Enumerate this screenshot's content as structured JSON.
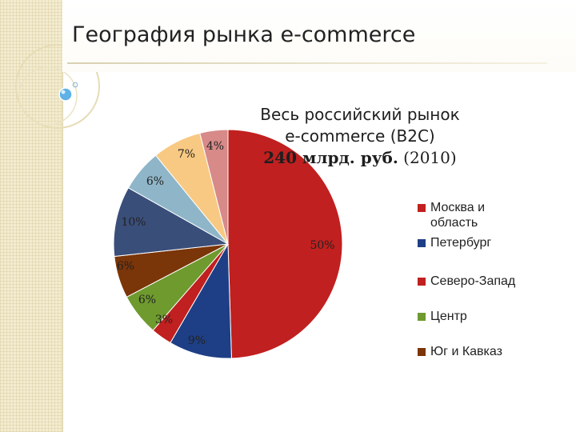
{
  "page": {
    "title": "География рынка e-commerce"
  },
  "chart_data": {
    "type": "pie",
    "title_lines": [
      "Весь российский рынок",
      "e-commerce (B2C)"
    ],
    "title_line3_bold": "240 млрд. руб.",
    "title_line3_rest": " (2010)",
    "slices": [
      {
        "label": "Москва и область",
        "value": 50,
        "pct_label": "50%",
        "color": "#c0201f"
      },
      {
        "label": "Петербург",
        "value": 9,
        "pct_label": "9%",
        "color": "#1e3f85"
      },
      {
        "label": "Северо-Запад",
        "value": 3,
        "pct_label": "3%",
        "color": "#c0201f"
      },
      {
        "label": "Центр",
        "value": 6,
        "pct_label": "6%",
        "color": "#6e9a2e"
      },
      {
        "label": "Юг и Кавказ",
        "value": 6,
        "pct_label": "6%",
        "color": "#7a3508"
      },
      {
        "label": "",
        "value": 10,
        "pct_label": "10%",
        "color": "#3a4e7a"
      },
      {
        "label": "",
        "value": 6,
        "pct_label": "6%",
        "color": "#8fb6c8"
      },
      {
        "label": "",
        "value": 7,
        "pct_label": "7%",
        "color": "#f8c982"
      },
      {
        "label": "",
        "value": 4,
        "pct_label": "4%",
        "color": "#d78a88"
      }
    ],
    "legend": [
      {
        "label": "Москва и область",
        "color": "#c0201f"
      },
      {
        "label": "Петербург",
        "color": "#1e3f85"
      },
      {
        "label": "Северо-Запад",
        "color": "#c0201f"
      },
      {
        "label": "Центр",
        "color": "#6e9a2e"
      },
      {
        "label": "Юг и Кавказ",
        "color": "#7a3508"
      }
    ],
    "legend_placement": "right"
  }
}
